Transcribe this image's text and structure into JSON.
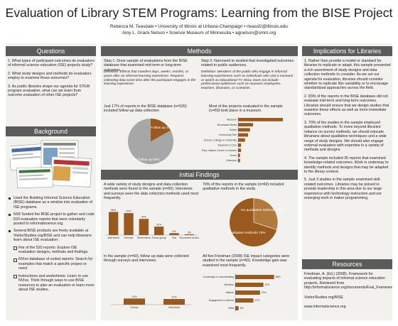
{
  "poster": {
    "title": "Evaluation of Library STEM Programs: Learning from the BISE Project",
    "authors_line1": "Rebecca M. Teasdale • University of Illinois at Urbana-Champaign • rteasd2@illinois.edu",
    "authors_line2": "Amy L. Grack Nelson • Science Museum of Minnesota • agnelson@smm.org"
  },
  "questions": {
    "header": "Questions",
    "items": [
      "1. What types of participant outcomes do evaluators of informal science education (ISE) projects study?",
      "2. What study designs and methods do evaluators employ to examine those outcomes?",
      "3. As public libraries shape our agenda for STEM program evaluation, what can we learn from outcome evaluation of other ISE projects?"
    ]
  },
  "background": {
    "header": "Background",
    "bullets": [
      "Used the Building Informal Science Education (BISE) database as a window into evaluation of ISE programs.",
      "NSF funded the BISE project to gather and code 520 evaluation reports that were voluntarily posted to informalscience.org.",
      "Several BISE products are freely available at VisitorStudies.org/BISE and can help librarians learn about ISE evaluation:"
    ],
    "sub_bullets": [
      "File of the 520 reports: Explore ISE evaluation designs, methods and findings.",
      "NVivo database of coded reports: Search for examples that match a specific project or need.",
      "Instructions and worksheets: Learn to use NVivo. Think through ways to use BISE resources to plan an evaluation or learn more about ISE studies."
    ]
  },
  "methods": {
    "header": "Methods",
    "step1": "Step 1: Drew sample of evaluations from the BISE database that examined mid-term or long-term outcomes.",
    "step1_def": "Definition: Effects that manifest days, weeks, months, or years after an informal learning experience. Requires collecting data some time after the participant engages in the learning experience.",
    "step1_result": "Just 17% of reports in the BISE database (n=520) included follow-up data collection",
    "pie1": {
      "label_yes": "Follow up 17%",
      "label_no": "No follow up 83%",
      "value_yes": 17,
      "value_no": 83
    },
    "step2": "Step 2: Narrowed to studied that investigated outcomes related to public audiences.",
    "step2_def": "Definition: Members of the public who engage in informal learning experiences such as individuals who visit a museum or watch an educational TV show. Does not include professional audiences such as museum employees, teachers, librarians, or scientists.",
    "step2_result": "Most of the projects evaluated in the sample (n=60) took place in a museum."
  },
  "findings": {
    "header": "Initial Findings",
    "f1_text": "A wide variety of study designs and data collection methods were found in the sample (n=60). Interviews and surveys were the data collection methods used most frequently.",
    "f2_text": "In the sample (n=60), follow up data were collected through surveys and interviews.",
    "f3_text": "70% of the reports in the sample (n=60) included qualitative methods in the study.",
    "pie2": {
      "label_no": "No qualitative methods 30%",
      "label_yes": "Qualitative methods 70%",
      "value_yes": 70,
      "value_no": 30
    },
    "f4_text": "All five Friedman (2008) ISE impact categories were studied in the sample (n=60). Knowledge gain was examined most frequently."
  },
  "implications": {
    "header": "Implications for Libraries",
    "items": [
      "1. Rather than provide a model or standard for libraries to replicate or adapt, this sample presented a rich assortment of study designs and data collection methods to consider. As we set our agenda for evaluation, libraries should consider whether to replicate this variability or to encourage standardized approaches across the field.",
      "2. 83% of the reports in the BISE database did not evaluate mid-term and long-term outcomes. Libraries should ensure that we design studies that examine these effects as well as more immediate outcomes.",
      "3. 70% of the studies in the sample employed qualitative methods. To move beyond libraries' reliance on survey methods, we should educate librarians about qualitative techniques and a wide range of study designs. We should also engage external evaluators with expertise in a variety of methods and designs.",
      "4. The sample included 35 reports that examined knowledge-related outcomes. Work is underway to identify methods and designs that may be adapted to the library context.",
      "5. Just 3 studies in the sample examined skill-related outcomes. Libraries may be poised to provide leadership in this area due to our large experience with technology instruction and our emerging work in maker programming."
    ]
  },
  "resources": {
    "header": "Resources",
    "citation": "Friedman, A. (Ed.) (2008). Framework for evaluating impacts of informal science education projects. Retrieved from http://informalscience.org/documents/Eval_Framework.pdf",
    "link1": "VisitorStudies.org/BISE",
    "link2": "www.informalscience.org"
  },
  "chart_data": [
    {
      "type": "bar",
      "title": "",
      "orientation": "horizontal",
      "categories": [
        "Museum",
        "Broadcast Media",
        "Online",
        "Community Site",
        "School, College or University",
        "Aquarium or Zoo",
        "Park, Nature Center or Garden",
        "Home",
        "Unknown"
      ],
      "values": [
        45,
        15,
        12,
        10,
        7,
        3,
        3,
        2,
        2
      ]
    },
    {
      "type": "bar",
      "title": "",
      "categories": [
        "Interviews",
        "Surveys",
        "Observation",
        "Focus group",
        "Test",
        "Document review"
      ],
      "values": [
        60,
        57,
        42,
        22,
        5,
        2
      ],
      "labels": [
        "60%",
        "57%",
        "42%",
        "22%",
        "5%",
        "2%"
      ]
    },
    {
      "type": "bar",
      "title": "",
      "categories": [
        "Survey",
        "Interviews"
      ],
      "values": [
        13,
        12
      ],
      "labels": [
        "13%",
        "12%"
      ]
    },
    {
      "type": "bar",
      "title": "",
      "orientation": "horizontal",
      "categories": [
        "Awareness, knowledge or understanding",
        "Behavior",
        "Attitude",
        "Engagement or interest",
        "Skills"
      ],
      "values": [
        58,
        42,
        37,
        27,
        5
      ],
      "labels": [
        "58%",
        "42%",
        "37%",
        "27%",
        "5%"
      ]
    }
  ]
}
